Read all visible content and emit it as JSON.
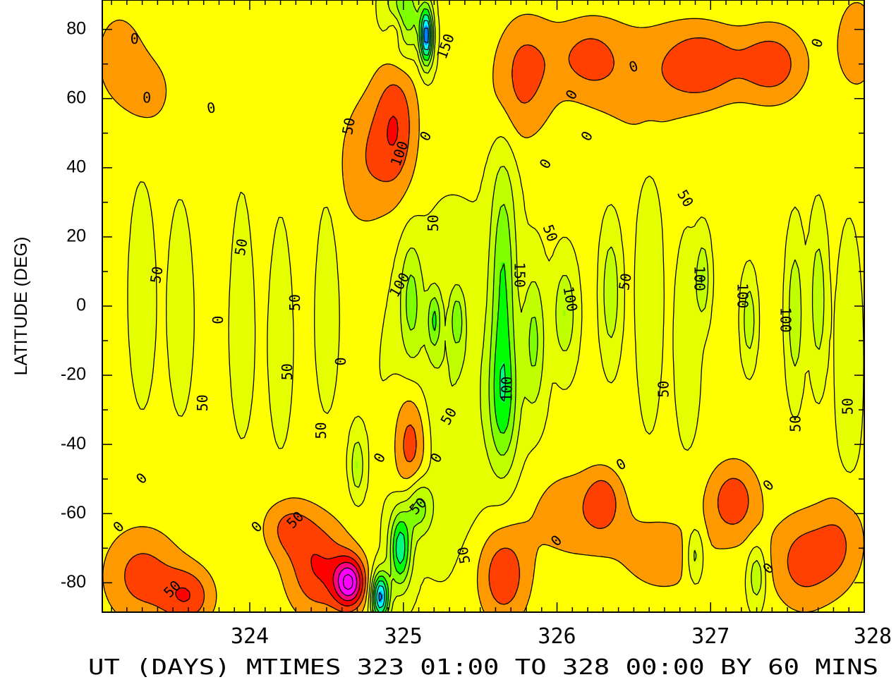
{
  "chart_data": {
    "type": "heatmap",
    "title": "",
    "xlabel": "UT (DAYS) MTIMES 323 01:00 TO 328 00:00 BY   60 MINS",
    "ylabel": "LATITUDE (DEG)",
    "xlim": [
      323.04,
      328.0
    ],
    "ylim": [
      -88.5,
      88.5
    ],
    "x_ticks": [
      324,
      325,
      326,
      327,
      328
    ],
    "x_tick_labels": [
      "324",
      "325",
      "326",
      "327",
      "328"
    ],
    "y_ticks": [
      80,
      60,
      40,
      20,
      0,
      -20,
      -40,
      -60,
      -80
    ],
    "y_tick_labels": [
      "80",
      "60",
      "40",
      "20",
      "0",
      "-20",
      "-40",
      "-60",
      "-80"
    ],
    "contour_interval": 50,
    "color_levels": [
      {
        "min": 250,
        "max": 300,
        "color": "#ff00ff"
      },
      {
        "min": 200,
        "max": 250,
        "color": "#ff0080"
      },
      {
        "min": 150,
        "max": 200,
        "color": "#ff0000"
      },
      {
        "min": 100,
        "max": 150,
        "color": "#ff4000"
      },
      {
        "min": 50,
        "max": 100,
        "color": "#ff9900"
      },
      {
        "min": 0,
        "max": 50,
        "color": "#ffff00"
      },
      {
        "min": -50,
        "max": 0,
        "color": "#e6ff00"
      },
      {
        "min": -100,
        "max": -50,
        "color": "#c0ff00"
      },
      {
        "min": -150,
        "max": -100,
        "color": "#80ff00"
      },
      {
        "min": -200,
        "max": -150,
        "color": "#00ff00"
      },
      {
        "min": -250,
        "max": -200,
        "color": "#00ff80"
      },
      {
        "min": -300,
        "max": -250,
        "color": "#00ffff"
      },
      {
        "min": -400,
        "max": -300,
        "color": "#0080ff"
      }
    ],
    "features": [
      {
        "x": 323.15,
        "y": 72,
        "v": 70,
        "sx": 0.12,
        "sy": 10
      },
      {
        "x": 323.35,
        "y": 62,
        "v": 55,
        "sx": 0.12,
        "sy": 8
      },
      {
        "x": 323.3,
        "y": -78,
        "v": 110,
        "sx": 0.18,
        "sy": 10
      },
      {
        "x": 323.6,
        "y": -84,
        "v": 120,
        "sx": 0.12,
        "sy": 6
      },
      {
        "x": 324.45,
        "y": -76,
        "v": 140,
        "sx": 0.15,
        "sy": 10
      },
      {
        "x": 324.65,
        "y": -80,
        "v": 260,
        "sx": 0.07,
        "sy": 5
      },
      {
        "x": 324.25,
        "y": -64,
        "v": 90,
        "sx": 0.12,
        "sy": 6
      },
      {
        "x": 324.95,
        "y": 52,
        "v": 130,
        "sx": 0.1,
        "sy": 14
      },
      {
        "x": 324.75,
        "y": 42,
        "v": 70,
        "sx": 0.12,
        "sy": 14
      },
      {
        "x": 324.95,
        "y": 80,
        "v": 100,
        "sx": 0.04,
        "sy": 4
      },
      {
        "x": 325.05,
        "y": -40,
        "v": 140,
        "sx": 0.08,
        "sy": 12
      },
      {
        "x": 325.65,
        "y": -78,
        "v": 130,
        "sx": 0.12,
        "sy": 10
      },
      {
        "x": 325.8,
        "y": 72,
        "v": 80,
        "sx": 0.15,
        "sy": 10
      },
      {
        "x": 326.2,
        "y": 72,
        "v": 90,
        "sx": 0.15,
        "sy": 8
      },
      {
        "x": 325.75,
        "y": 58,
        "v": 60,
        "sx": 0.15,
        "sy": 10
      },
      {
        "x": 326.55,
        "y": 65,
        "v": 60,
        "sx": 0.25,
        "sy": 14
      },
      {
        "x": 326.95,
        "y": 70,
        "v": 120,
        "sx": 0.18,
        "sy": 8
      },
      {
        "x": 327.4,
        "y": 70,
        "v": 120,
        "sx": 0.16,
        "sy": 8
      },
      {
        "x": 327.95,
        "y": 76,
        "v": 80,
        "sx": 0.1,
        "sy": 10
      },
      {
        "x": 326.1,
        "y": -60,
        "v": 70,
        "sx": 0.22,
        "sy": 10
      },
      {
        "x": 326.3,
        "y": -56,
        "v": 90,
        "sx": 0.08,
        "sy": 6
      },
      {
        "x": 327.15,
        "y": -56,
        "v": 120,
        "sx": 0.12,
        "sy": 8
      },
      {
        "x": 327.6,
        "y": -74,
        "v": 110,
        "sx": 0.15,
        "sy": 10
      },
      {
        "x": 327.85,
        "y": -68,
        "v": 80,
        "sx": 0.12,
        "sy": 10
      },
      {
        "x": 326.7,
        "y": -72,
        "v": 60,
        "sx": 0.25,
        "sy": 10
      },
      {
        "x": 324.15,
        "y": 28,
        "v": 20,
        "sx": 0.4,
        "sy": 20
      },
      {
        "x": 325.15,
        "y": 78,
        "v": -330,
        "sx": 0.03,
        "sy": 6
      },
      {
        "x": 325.0,
        "y": 84,
        "v": -170,
        "sx": 0.08,
        "sy": 8
      },
      {
        "x": 324.85,
        "y": -84,
        "v": -330,
        "sx": 0.04,
        "sy": 5
      },
      {
        "x": 324.98,
        "y": -70,
        "v": -240,
        "sx": 0.05,
        "sy": 8
      },
      {
        "x": 325.1,
        "y": -58,
        "v": -140,
        "sx": 0.06,
        "sy": 6
      },
      {
        "x": 325.65,
        "y": 8,
        "v": -150,
        "sx": 0.06,
        "sy": 26
      },
      {
        "x": 325.65,
        "y": -28,
        "v": -130,
        "sx": 0.07,
        "sy": 14
      },
      {
        "x": 325.05,
        "y": 2,
        "v": -110,
        "sx": 0.05,
        "sy": 12
      },
      {
        "x": 325.2,
        "y": -4,
        "v": -130,
        "sx": 0.03,
        "sy": 6
      },
      {
        "x": 325.35,
        "y": -4,
        "v": -110,
        "sx": 0.03,
        "sy": 6
      },
      {
        "x": 325.85,
        "y": -10,
        "v": -120,
        "sx": 0.05,
        "sy": 14
      },
      {
        "x": 326.05,
        "y": -2,
        "v": -110,
        "sx": 0.05,
        "sy": 10
      },
      {
        "x": 326.35,
        "y": 4,
        "v": -110,
        "sx": 0.04,
        "sy": 12
      },
      {
        "x": 326.95,
        "y": 8,
        "v": -110,
        "sx": 0.03,
        "sy": 8
      },
      {
        "x": 327.25,
        "y": -4,
        "v": -105,
        "sx": 0.03,
        "sy": 8
      },
      {
        "x": 327.55,
        "y": -2,
        "v": -110,
        "sx": 0.035,
        "sy": 14
      },
      {
        "x": 327.7,
        "y": 2,
        "v": -105,
        "sx": 0.035,
        "sy": 14
      },
      {
        "x": 324.7,
        "y": -46,
        "v": -110,
        "sx": 0.03,
        "sy": 6
      },
      {
        "x": 326.9,
        "y": -72,
        "v": -110,
        "sx": 0.04,
        "sy": 6
      },
      {
        "x": 327.3,
        "y": -78,
        "v": -110,
        "sx": 0.04,
        "sy": 6
      },
      {
        "x": 325.3,
        "y": -24,
        "v": -60,
        "sx": 0.25,
        "sy": 30
      },
      {
        "x": 323.3,
        "y": 4,
        "v": -60,
        "sx": 0.05,
        "sy": 18
      },
      {
        "x": 323.55,
        "y": 2,
        "v": -60,
        "sx": 0.05,
        "sy": 18
      },
      {
        "x": 323.95,
        "y": 4,
        "v": -65,
        "sx": 0.05,
        "sy": 22
      },
      {
        "x": 324.2,
        "y": 0,
        "v": -60,
        "sx": 0.05,
        "sy": 22
      },
      {
        "x": 324.5,
        "y": 6,
        "v": -55,
        "sx": 0.05,
        "sy": 20
      },
      {
        "x": 326.6,
        "y": 4,
        "v": -60,
        "sx": 0.05,
        "sy": 22
      },
      {
        "x": 326.85,
        "y": -10,
        "v": -55,
        "sx": 0.05,
        "sy": 18
      },
      {
        "x": 327.9,
        "y": -16,
        "v": -60,
        "sx": 0.05,
        "sy": 22
      },
      {
        "x": 324.95,
        "y": -72,
        "v": 0,
        "sx": 0.01,
        "sy": 1
      }
    ],
    "contour_labels": [
      {
        "text": "0",
        "x": 323.25,
        "y": 77,
        "rot": 0
      },
      {
        "text": "0",
        "x": 323.33,
        "y": 60,
        "rot": 0
      },
      {
        "text": "0",
        "x": 323.75,
        "y": 57,
        "rot": -10
      },
      {
        "text": "50",
        "x": 324.65,
        "y": 52,
        "rot": -80
      },
      {
        "text": "100",
        "x": 324.98,
        "y": 44,
        "rot": -70
      },
      {
        "text": "0",
        "x": 325.15,
        "y": 49,
        "rot": -60
      },
      {
        "text": "150",
        "x": 325.28,
        "y": 75,
        "rot": -70
      },
      {
        "text": "0",
        "x": 325.93,
        "y": 41,
        "rot": -60
      },
      {
        "text": "0",
        "x": 326.1,
        "y": 61,
        "rot": -60
      },
      {
        "text": "0",
        "x": 326.2,
        "y": 49,
        "rot": -60
      },
      {
        "text": "0",
        "x": 326.5,
        "y": 69,
        "rot": -20
      },
      {
        "text": "0",
        "x": 327.7,
        "y": 76,
        "rot": -70
      },
      {
        "text": "50",
        "x": 326.83,
        "y": 31,
        "rot": 60
      },
      {
        "text": "50",
        "x": 325.2,
        "y": 24,
        "rot": -90
      },
      {
        "text": "50",
        "x": 325.95,
        "y": 21,
        "rot": 70
      },
      {
        "text": "50",
        "x": 323.4,
        "y": 9,
        "rot": -80
      },
      {
        "text": "50",
        "x": 323.95,
        "y": 17,
        "rot": -80
      },
      {
        "text": "0",
        "x": 323.8,
        "y": -4,
        "rot": -90
      },
      {
        "text": "50",
        "x": 324.3,
        "y": 1,
        "rot": -90
      },
      {
        "text": "100",
        "x": 324.98,
        "y": 6,
        "rot": -60
      },
      {
        "text": "150",
        "x": 325.75,
        "y": 9,
        "rot": 90
      },
      {
        "text": "100",
        "x": 326.08,
        "y": 2,
        "rot": 80
      },
      {
        "text": "50",
        "x": 326.45,
        "y": 7,
        "rot": -80
      },
      {
        "text": "100",
        "x": 326.92,
        "y": 8,
        "rot": 90
      },
      {
        "text": "100",
        "x": 327.2,
        "y": 3,
        "rot": 90
      },
      {
        "text": "100",
        "x": 327.48,
        "y": -4,
        "rot": 90
      },
      {
        "text": "0",
        "x": 324.6,
        "y": -16,
        "rot": -90
      },
      {
        "text": "50",
        "x": 324.25,
        "y": -19,
        "rot": -90
      },
      {
        "text": "50",
        "x": 323.7,
        "y": -28,
        "rot": -90
      },
      {
        "text": "100",
        "x": 325.68,
        "y": -24,
        "rot": -90
      },
      {
        "text": "50",
        "x": 326.7,
        "y": -24,
        "rot": -90
      },
      {
        "text": "50",
        "x": 327.56,
        "y": -34,
        "rot": -90
      },
      {
        "text": "50",
        "x": 327.9,
        "y": -29,
        "rot": -90
      },
      {
        "text": "50",
        "x": 325.3,
        "y": -32,
        "rot": -60
      },
      {
        "text": "50",
        "x": 324.47,
        "y": -36,
        "rot": -90
      },
      {
        "text": "0",
        "x": 324.85,
        "y": -44,
        "rot": -60
      },
      {
        "text": "0",
        "x": 325.22,
        "y": -44,
        "rot": -60
      },
      {
        "text": "0",
        "x": 323.3,
        "y": -50,
        "rot": -45
      },
      {
        "text": "0",
        "x": 323.15,
        "y": -64,
        "rot": -45
      },
      {
        "text": "0",
        "x": 324.05,
        "y": -64,
        "rot": -45
      },
      {
        "text": "50",
        "x": 324.3,
        "y": -62,
        "rot": -45
      },
      {
        "text": "50",
        "x": 325.1,
        "y": -58,
        "rot": -45
      },
      {
        "text": "50",
        "x": 325.4,
        "y": -72,
        "rot": -100
      },
      {
        "text": "0",
        "x": 326.0,
        "y": -68,
        "rot": -45
      },
      {
        "text": "0",
        "x": 326.42,
        "y": -46,
        "rot": -30
      },
      {
        "text": "0",
        "x": 327.38,
        "y": -52,
        "rot": -45
      },
      {
        "text": "0",
        "x": 327.38,
        "y": -76,
        "rot": -45
      },
      {
        "text": "50",
        "x": 323.5,
        "y": -82,
        "rot": -45
      }
    ],
    "grid": false,
    "legend": "none"
  }
}
